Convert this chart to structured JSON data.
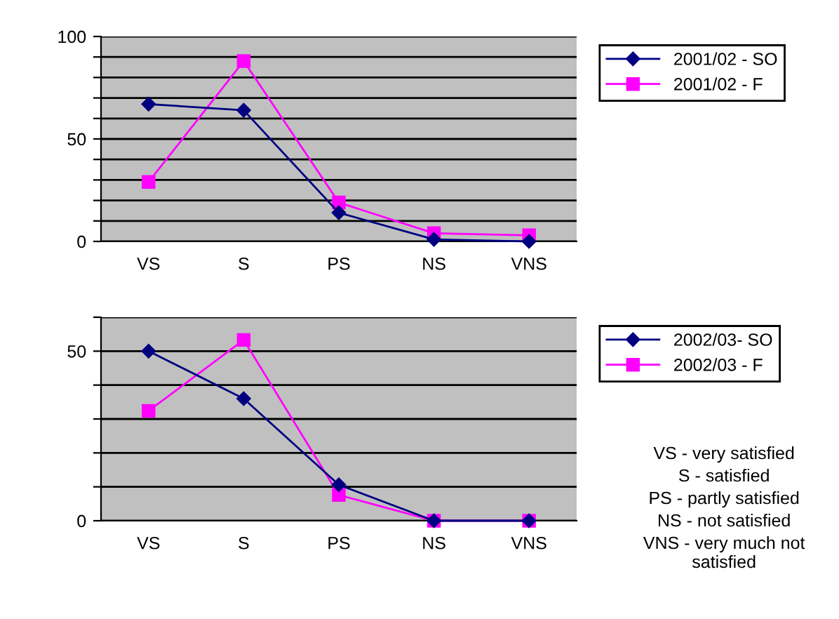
{
  "chart_data": [
    {
      "type": "line",
      "categories": [
        "VS",
        "S",
        "PS",
        "NS",
        "VNS"
      ],
      "series": [
        {
          "name": "2001/02 - SO",
          "color": "#000080",
          "marker": "diamond",
          "values": [
            67,
            64,
            14,
            1,
            0
          ]
        },
        {
          "name": "2001/02 - F",
          "color": "#ff00ff",
          "marker": "square",
          "values": [
            29,
            88,
            19,
            4,
            3
          ]
        }
      ],
      "ylim": [
        0,
        100
      ],
      "yticks": [
        0,
        {
          "value": 10,
          "label": null
        },
        {
          "value": 20,
          "label": null
        },
        {
          "value": 30,
          "label": null
        },
        {
          "value": 40,
          "label": null
        },
        50,
        {
          "value": 60,
          "label": null
        },
        {
          "value": 70,
          "label": null
        },
        {
          "value": 80,
          "label": null
        },
        {
          "value": 90,
          "label": null
        },
        100
      ],
      "grid": "y",
      "legend": "right",
      "line_style": "solid"
    },
    {
      "type": "line",
      "categories": [
        "VS",
        "S",
        "PS",
        "NS",
        "VNS"
      ],
      "series": [
        {
          "name": "2002/03- SO",
          "color": "#000080",
          "marker": "diamond",
          "values": [
            50,
            36,
            10.6,
            0,
            0
          ]
        },
        {
          "name": "2002/03 - F",
          "color": "#ff00ff",
          "marker": "square",
          "values": [
            32.4,
            53.3,
            7.6,
            0,
            0
          ]
        }
      ],
      "ylim": [
        0,
        60
      ],
      "yticks": [
        0,
        {
          "value": 10,
          "label": null
        },
        {
          "value": 20,
          "label": null
        },
        {
          "value": 30,
          "label": null
        },
        {
          "value": 40,
          "label": null
        },
        50,
        {
          "value": 60,
          "label": null
        }
      ],
      "grid": "y",
      "legend": "right",
      "line_style": "solid",
      "annotations": [
        "VS - very satisfied",
        "S - satisfied",
        "PS - partly satisfied",
        "NS - not satisfied",
        "VNS - very much not satisfied"
      ]
    }
  ]
}
